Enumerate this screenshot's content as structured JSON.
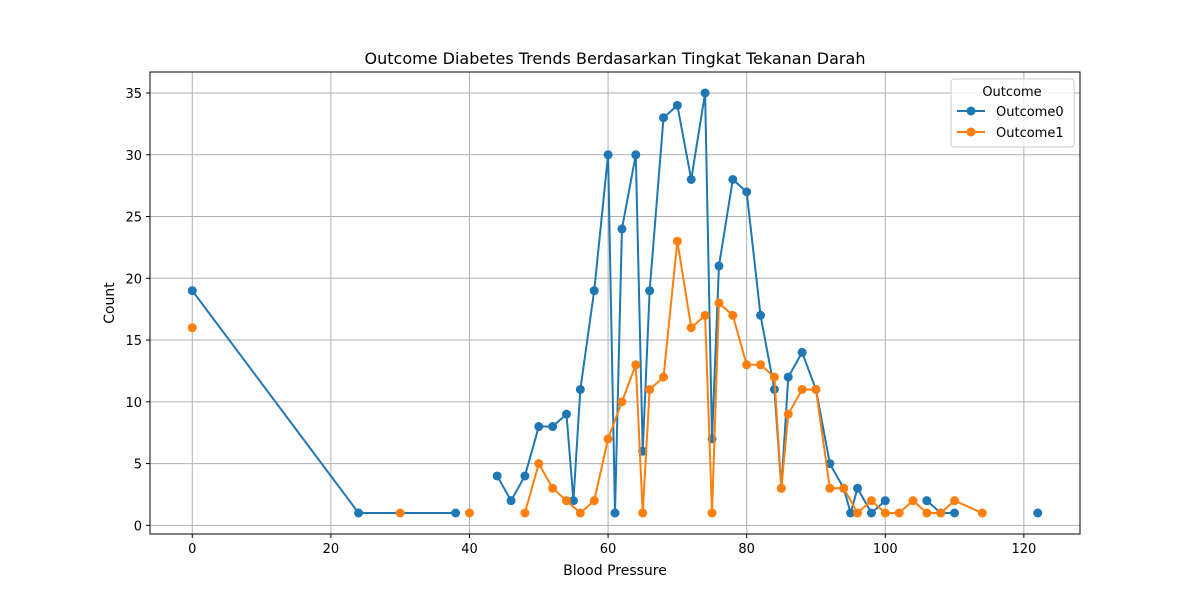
{
  "chart_data": {
    "type": "line",
    "title": "Outcome Diabetes Trends Berdasarkan Tingkat Tekanan Darah",
    "xlabel": "Blood Pressure",
    "ylabel": "Count",
    "xlim": [
      -6.1,
      128.1
    ],
    "ylim": [
      -0.7,
      36.7
    ],
    "xticks": [
      0,
      20,
      40,
      60,
      80,
      100,
      120
    ],
    "yticks": [
      0,
      5,
      10,
      15,
      20,
      25,
      30,
      35
    ],
    "grid": true,
    "legend": {
      "title": "Outcome",
      "position": "top-right"
    },
    "series": [
      {
        "name": "Outcome0",
        "color": "#1f77b4",
        "x": [
          0,
          24,
          38,
          null,
          44,
          46,
          48,
          50,
          52,
          54,
          55,
          56,
          58,
          60,
          61,
          62,
          64,
          65,
          66,
          68,
          70,
          72,
          74,
          75,
          76,
          78,
          80,
          82,
          84,
          85,
          86,
          88,
          90,
          92,
          94,
          95,
          96,
          98,
          100,
          null,
          106,
          108,
          110,
          null,
          122
        ],
        "y": [
          19,
          1,
          1,
          null,
          4,
          2,
          4,
          8,
          8,
          9,
          2,
          11,
          19,
          30,
          1,
          24,
          30,
          6,
          19,
          33,
          34,
          28,
          35,
          7,
          21,
          28,
          27,
          17,
          11,
          3,
          12,
          14,
          11,
          5,
          3,
          1,
          3,
          1,
          2,
          null,
          2,
          1,
          1,
          null,
          1
        ]
      },
      {
        "name": "Outcome1",
        "color": "#ff7f0e",
        "x": [
          0,
          null,
          30,
          null,
          40,
          null,
          48,
          50,
          52,
          54,
          56,
          58,
          60,
          62,
          64,
          65,
          66,
          68,
          70,
          72,
          74,
          75,
          76,
          78,
          80,
          82,
          84,
          85,
          86,
          88,
          90,
          92,
          94,
          96,
          98,
          100,
          102,
          104,
          106,
          108,
          110,
          114
        ],
        "y": [
          16,
          null,
          1,
          null,
          1,
          null,
          1,
          5,
          3,
          2,
          1,
          2,
          7,
          10,
          13,
          1,
          11,
          12,
          23,
          16,
          17,
          1,
          18,
          17,
          13,
          13,
          12,
          3,
          9,
          11,
          11,
          3,
          3,
          1,
          2,
          1,
          1,
          2,
          1,
          1,
          2,
          1
        ]
      }
    ]
  }
}
